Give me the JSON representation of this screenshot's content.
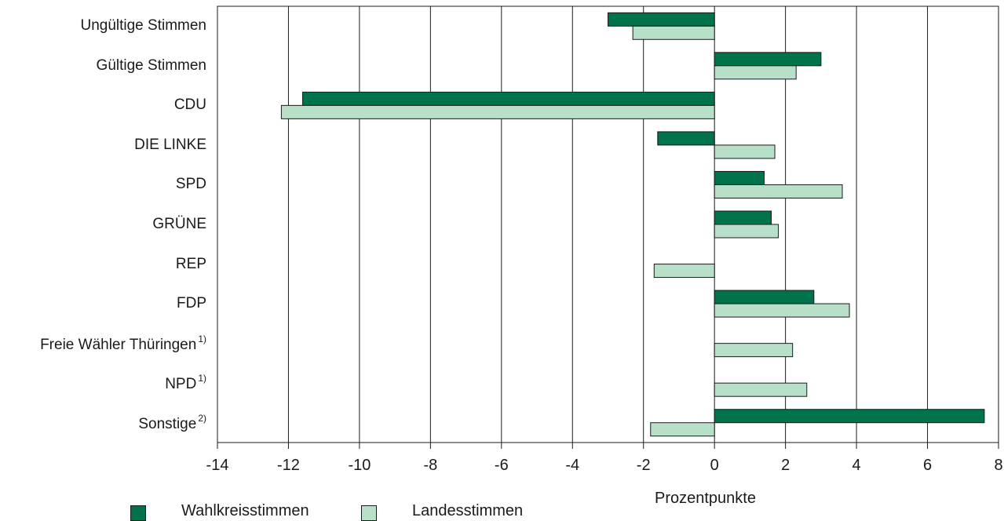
{
  "chart_data": {
    "type": "bar",
    "orientation": "horizontal",
    "xlabel": "Prozentpunkte",
    "xlim": [
      -14,
      8
    ],
    "xticks": [
      -14,
      -12,
      -10,
      -8,
      -6,
      -4,
      -2,
      0,
      2,
      4,
      6,
      8
    ],
    "grid": true,
    "legend_placement": "bottom-left",
    "categories": [
      {
        "label": "Ungültige Stimmen",
        "note": ""
      },
      {
        "label": "Gültige Stimmen",
        "note": ""
      },
      {
        "label": "CDU",
        "note": ""
      },
      {
        "label": "DIE LINKE",
        "note": ""
      },
      {
        "label": "SPD",
        "note": ""
      },
      {
        "label": "GRÜNE",
        "note": ""
      },
      {
        "label": "REP",
        "note": ""
      },
      {
        "label": "FDP",
        "note": ""
      },
      {
        "label": "Freie Wähler Thüringen",
        "note": "1)"
      },
      {
        "label": "NPD",
        "note": "1)"
      },
      {
        "label": "Sonstige",
        "note": "2)"
      }
    ],
    "series": [
      {
        "name": "Wahlkreisstimmen",
        "color": "#00734a",
        "values": [
          -3.0,
          3.0,
          -11.6,
          -1.6,
          1.4,
          1.6,
          null,
          2.8,
          null,
          null,
          7.6
        ]
      },
      {
        "name": "Landesstimmen",
        "color": "#b8e0c8",
        "values": [
          -2.3,
          2.3,
          -12.2,
          1.7,
          3.6,
          1.8,
          -1.7,
          3.8,
          2.2,
          2.6,
          -1.8
        ]
      }
    ]
  }
}
